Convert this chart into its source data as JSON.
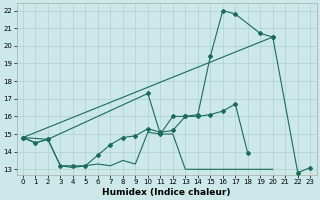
{
  "xlabel": "Humidex (Indice chaleur)",
  "background_color": "#cce8e8",
  "grid_color": "#b0d0d0",
  "line_color": "#1a6b5a",
  "xlim": [
    -0.5,
    23.5
  ],
  "ylim": [
    12.7,
    22.4
  ],
  "yticks": [
    13,
    14,
    15,
    16,
    17,
    18,
    19,
    20,
    21,
    22
  ],
  "xticks": [
    0,
    1,
    2,
    3,
    4,
    5,
    6,
    7,
    8,
    9,
    10,
    11,
    12,
    13,
    14,
    15,
    16,
    17,
    18,
    19,
    20,
    21,
    22,
    23
  ],
  "s1x": [
    0,
    1,
    2,
    3,
    4,
    5,
    6,
    7,
    8,
    9,
    10,
    11,
    12,
    13,
    14,
    15,
    16,
    17,
    18,
    19,
    20
  ],
  "s1y": [
    14.8,
    14.5,
    14.7,
    13.2,
    13.1,
    13.2,
    13.3,
    13.2,
    13.5,
    13.3,
    15.1,
    15.0,
    15.0,
    13.0,
    13.0,
    13.0,
    13.0,
    13.0,
    13.0,
    13.0,
    13.0
  ],
  "s2x": [
    0,
    1,
    2,
    3,
    4,
    5,
    6,
    7,
    8,
    9,
    10,
    11,
    12,
    13,
    14,
    15,
    16,
    17,
    18
  ],
  "s2y": [
    14.8,
    14.5,
    14.7,
    13.2,
    13.2,
    13.2,
    13.8,
    14.4,
    14.8,
    14.9,
    15.3,
    15.1,
    15.2,
    16.0,
    16.0,
    16.1,
    16.3,
    16.7,
    13.9
  ],
  "s3x": [
    0,
    2,
    10,
    11,
    12,
    13,
    14,
    15,
    16,
    17,
    19,
    20
  ],
  "s3y": [
    14.8,
    14.7,
    17.3,
    15.0,
    16.0,
    16.0,
    16.1,
    19.4,
    22.0,
    21.8,
    20.7,
    20.5
  ],
  "s4x": [
    20,
    22,
    23
  ],
  "s4y": [
    20.5,
    12.8,
    13.1
  ],
  "s5x": [
    0,
    20
  ],
  "s5y": [
    14.8,
    20.5
  ]
}
